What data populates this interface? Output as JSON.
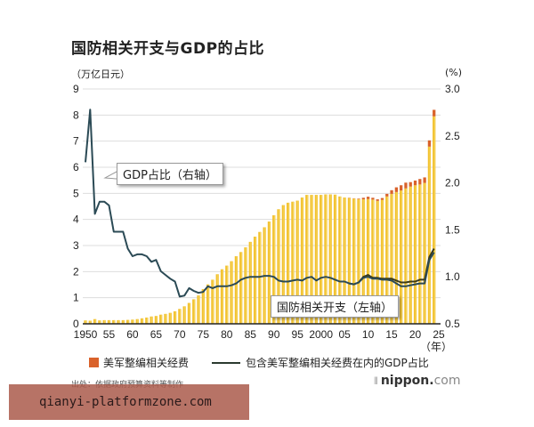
{
  "title": "国防相关开支与GDP的占比",
  "unit_left": "（万亿日元）",
  "unit_right": "(%)",
  "callout_gdp": "GDP占比（右轴）",
  "callout_spend": "国防相关开支（左轴）",
  "x_unit": "（年）",
  "legend": {
    "item1": "美军整编相关经费",
    "item2": "包含美军整编相关经费在内的GDP占比"
  },
  "source": "出处：依据政府预算资料等制作",
  "brand": {
    "bars": "⦀",
    "name": "nippon.",
    "suffix": "com"
  },
  "watermark": "qianyi-platformzone.com",
  "colors": {
    "bar": "#f2c12e",
    "bar_highlight": "#f7da6a",
    "realignment": "#d9622b",
    "line_main": "#2b4a55",
    "line_incl": "#3a3a1a",
    "grid": "#dddddd"
  },
  "chart_data": {
    "type": "bar+line",
    "title": "国防相关开支与GDP的占比",
    "xlabel": "（年）",
    "ylabel_left": "万亿日元",
    "ylabel_right": "%",
    "ylim_left": [
      0,
      9
    ],
    "ylim_right": [
      0.5,
      3.0
    ],
    "yticks_left": [
      0,
      1,
      2,
      3,
      4,
      5,
      6,
      7,
      8,
      9
    ],
    "yticks_right": [
      0.5,
      1.0,
      1.5,
      2.0,
      2.5,
      3.0
    ],
    "xticks": [
      "1950",
      "55",
      "60",
      "65",
      "70",
      "75",
      "80",
      "85",
      "90",
      "95",
      "2000",
      "05",
      "10",
      "15",
      "20",
      "25"
    ],
    "grid": true,
    "legend_position": "bottom",
    "x": [
      1950,
      1951,
      1952,
      1953,
      1954,
      1955,
      1956,
      1957,
      1958,
      1959,
      1960,
      1961,
      1962,
      1963,
      1964,
      1965,
      1966,
      1967,
      1968,
      1969,
      1970,
      1971,
      1972,
      1973,
      1974,
      1975,
      1976,
      1977,
      1978,
      1979,
      1980,
      1981,
      1982,
      1983,
      1984,
      1985,
      1986,
      1987,
      1988,
      1989,
      1990,
      1991,
      1992,
      1993,
      1994,
      1995,
      1996,
      1997,
      1998,
      1999,
      2000,
      2001,
      2002,
      2003,
      2004,
      2005,
      2006,
      2007,
      2008,
      2009,
      2010,
      2011,
      2012,
      2013,
      2014,
      2015,
      2016,
      2017,
      2018,
      2019,
      2020,
      2021,
      2022,
      2023,
      2024
    ],
    "series": [
      {
        "name": "国防相关开支（左轴）",
        "axis": "left",
        "type": "bar",
        "values": [
          0.13,
          0.12,
          0.18,
          0.13,
          0.14,
          0.14,
          0.14,
          0.14,
          0.14,
          0.15,
          0.16,
          0.18,
          0.21,
          0.24,
          0.28,
          0.3,
          0.35,
          0.38,
          0.42,
          0.48,
          0.57,
          0.67,
          0.8,
          0.94,
          1.09,
          1.33,
          1.51,
          1.69,
          1.9,
          2.09,
          2.23,
          2.4,
          2.59,
          2.75,
          2.93,
          3.14,
          3.34,
          3.52,
          3.7,
          3.92,
          4.16,
          4.39,
          4.55,
          4.64,
          4.68,
          4.72,
          4.84,
          4.94,
          4.94,
          4.94,
          4.94,
          4.96,
          4.96,
          4.95,
          4.88,
          4.84,
          4.82,
          4.8,
          4.78,
          4.77,
          4.78,
          4.76,
          4.71,
          4.75,
          4.88,
          4.98,
          5.05,
          5.11,
          5.19,
          5.26,
          5.31,
          5.34,
          5.4,
          6.79,
          7.95
        ]
      },
      {
        "name": "美军整编相关经费",
        "axis": "left",
        "type": "bar_stack",
        "values": [
          0,
          0,
          0,
          0,
          0,
          0,
          0,
          0,
          0,
          0,
          0,
          0,
          0,
          0,
          0,
          0,
          0,
          0,
          0,
          0,
          0,
          0,
          0,
          0,
          0,
          0,
          0,
          0,
          0,
          0,
          0,
          0,
          0,
          0,
          0,
          0,
          0,
          0,
          0,
          0,
          0,
          0,
          0,
          0,
          0,
          0,
          0,
          0,
          0,
          0,
          0,
          0,
          0,
          0,
          0,
          0,
          0.01,
          0.01,
          0.02,
          0.06,
          0.09,
          0.07,
          0.06,
          0.07,
          0.1,
          0.14,
          0.18,
          0.2,
          0.22,
          0.17,
          0.18,
          0.21,
          0.21,
          0.24,
          0.25
        ]
      },
      {
        "name": "GDP占比（右轴）",
        "axis": "right",
        "type": "line",
        "values": [
          2.22,
          2.78,
          1.67,
          1.8,
          1.8,
          1.76,
          1.48,
          1.48,
          1.48,
          1.3,
          1.22,
          1.24,
          1.24,
          1.22,
          1.16,
          1.18,
          1.06,
          1.02,
          0.98,
          0.95,
          0.79,
          0.8,
          0.88,
          0.85,
          0.83,
          0.84,
          0.9,
          0.88,
          0.9,
          0.9,
          0.9,
          0.91,
          0.93,
          0.97,
          0.99,
          1.0,
          1.0,
          1.0,
          1.01,
          1.01,
          1.0,
          0.96,
          0.95,
          0.95,
          0.96,
          0.97,
          0.96,
          0.99,
          1.0,
          0.96,
          0.99,
          1.0,
          0.99,
          0.97,
          0.95,
          0.95,
          0.93,
          0.92,
          0.94,
          0.99,
          1.0,
          0.98,
          0.98,
          0.97,
          0.97,
          0.96,
          0.93,
          0.9,
          0.9,
          0.91,
          0.92,
          0.93,
          0.93,
          1.18,
          1.26
        ]
      },
      {
        "name": "包含美军整编相关经费在内的GDP占比",
        "axis": "right",
        "type": "line",
        "values": [
          null,
          null,
          null,
          null,
          null,
          null,
          null,
          null,
          null,
          null,
          null,
          null,
          null,
          null,
          null,
          null,
          null,
          null,
          null,
          null,
          null,
          null,
          null,
          null,
          null,
          null,
          null,
          null,
          null,
          null,
          null,
          null,
          null,
          null,
          null,
          null,
          null,
          null,
          null,
          null,
          null,
          null,
          null,
          null,
          null,
          null,
          null,
          null,
          null,
          null,
          null,
          null,
          null,
          null,
          null,
          null,
          0.93,
          0.92,
          0.94,
          1.0,
          1.02,
          0.99,
          0.99,
          0.98,
          0.98,
          0.98,
          0.96,
          0.94,
          0.94,
          0.95,
          0.95,
          0.97,
          0.97,
          1.21,
          1.3
        ]
      }
    ]
  }
}
